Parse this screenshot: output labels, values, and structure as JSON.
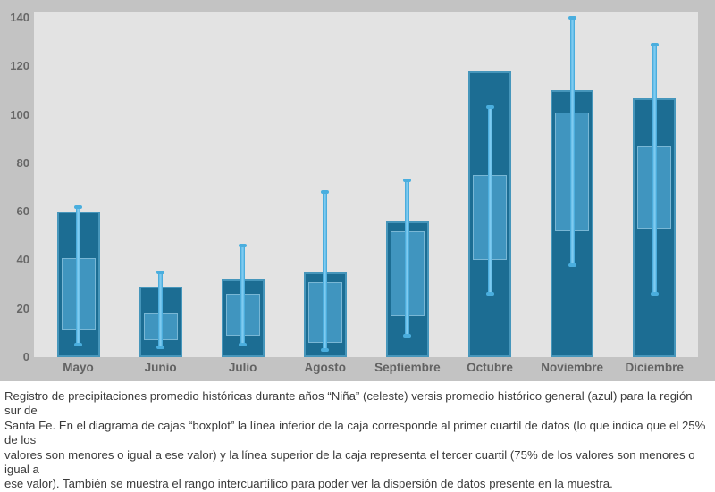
{
  "figure": {
    "caption": "Registro de precipitaciones promedio históricas durante años “Niña” (celeste) versis promedio histórico general (azul) para la región sur de\nSanta Fe. En el diagrama de cajas “boxplot” la línea inferior de la caja corresponde al primer cuartil de datos (lo que indica que el 25% de los\nvalores son menores o igual a ese valor) y la línea superior de la caja representa el tercer cuartil (75% de los valores son menores o igual a\nese valor). También se muestra el rango intercuartílico para poder ver la dispersión de datos presente en la muestra."
  },
  "chart_data": {
    "type": "bar",
    "subtype": "bar-with-boxplot-overlay",
    "title": "",
    "xlabel": "",
    "ylabel": "",
    "categories": [
      "Mayo",
      "Junio",
      "Julio",
      "Agosto",
      "Septiembre",
      "Octubre",
      "Noviembre",
      "Diciembre"
    ],
    "ylim": [
      0,
      140
    ],
    "yticks": [
      0,
      20,
      40,
      60,
      80,
      100,
      120,
      140
    ],
    "grid": false,
    "legend_position": "none",
    "series": [
      {
        "name": "Promedio histórico general (azul)",
        "type": "bar",
        "values": [
          60,
          29,
          32,
          35,
          56,
          118,
          110,
          107
        ]
      },
      {
        "name": "Promedio histórico años Niña (celeste)",
        "type": "boxplot",
        "q1": [
          11,
          7,
          9,
          6,
          17,
          40,
          52,
          53
        ],
        "q3": [
          41,
          18,
          26,
          31,
          52,
          75,
          101,
          87
        ],
        "whisker_low": [
          5,
          4,
          5,
          3,
          9,
          26,
          38,
          26
        ],
        "whisker_high": [
          62,
          35,
          46,
          68,
          73,
          103,
          140,
          129
        ]
      }
    ],
    "colors": {
      "bar_general": "#1c6d93",
      "box_nina": "#4095bf",
      "whisker": "#47aede",
      "outer_background": "#c3c3c3",
      "plot_background": "#e3e3e3",
      "axis_text": "#666666",
      "caption_text": "#3a3a3a"
    }
  }
}
